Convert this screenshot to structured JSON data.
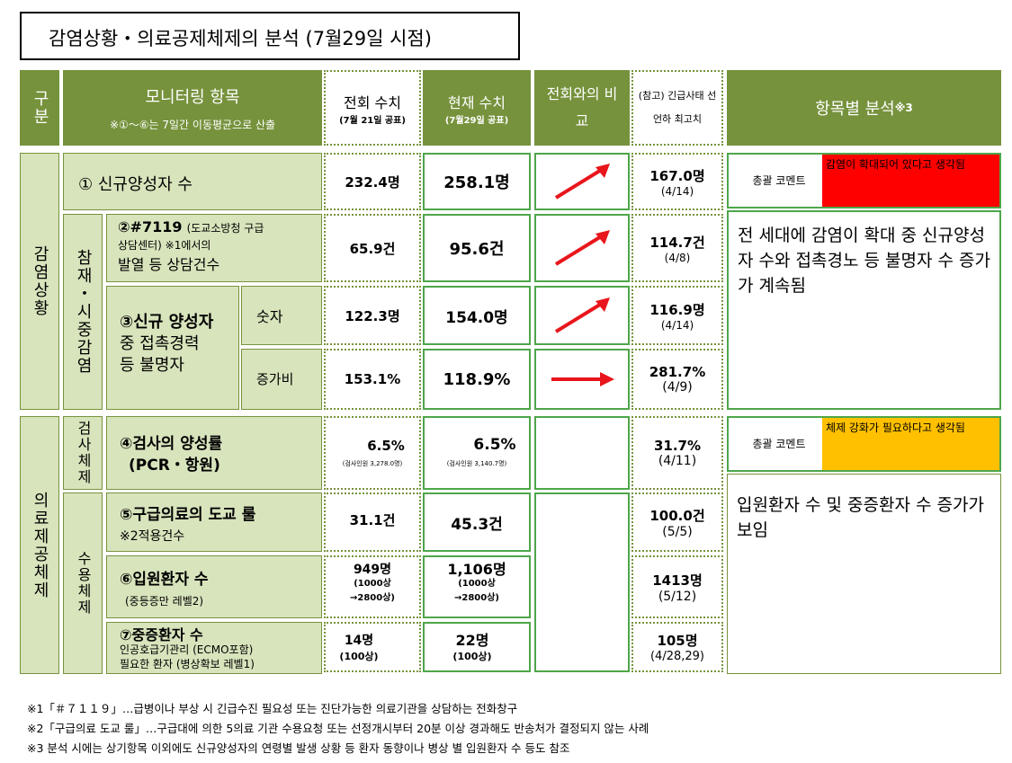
{
  "title": "감염상황・의료공제체제의 분석 (7월29일 시점)",
  "header": {
    "category": "구분",
    "items": "모니터링 항목",
    "items_note": "※①～⑥는 7일간 이동평균으로 산출",
    "prev": "전회 수치",
    "prev_note": "(7월 21일 공표)",
    "current": "현재 수치",
    "current_note": "(7월29일 공표)",
    "compare": "전회와의 비교",
    "ref": "(참고) 긴급사태 선언하 최고치",
    "analysis": "항목별 분석",
    "analysis_note": "※3"
  },
  "sections": {
    "infection": "감염상황",
    "resurgence": "참재・시중감염",
    "testing": "검사체제",
    "medical": "의료제공체제",
    "capacity": "수용체제"
  },
  "rows": [
    {
      "label": "① 신규양성자 수",
      "prev": "232.4명",
      "cur": "258.1명",
      "ref": "167.0명",
      "ref_date": "(4/14)"
    },
    {
      "label": "②#7119 (도교소방청 구급상담센터) ※1에서의 발열 등 상담건수",
      "label_a": "②#7119",
      "label_b": "(도교소방청 구급",
      "label_c": "상담센터) ※1에서의",
      "label_d": "발열 등 상담건수",
      "prev": "65.9건",
      "cur": "95.6건",
      "ref": "114.7건",
      "ref_date": "(4/8)"
    },
    {
      "label_a": "③신규 양성자",
      "label_b": "중 접촉경력",
      "label_c": "등 불명자",
      "sub1": "숫자",
      "sub2": "증가비",
      "prev": "122.3명",
      "cur": "154.0명",
      "ref": "116.9명",
      "ref_date": "(4/14)",
      "prev2": "153.1%",
      "cur2": "118.9%",
      "ref2": "281.7%",
      "ref2_date": "(4/9)"
    },
    {
      "label_a": "④검사의 양성률",
      "label_b": "(PCR・항원)",
      "prev": "6.5%",
      "prev_note": "(검사인원 3,278.0명)",
      "cur": "6.5%",
      "cur_note": "(검사인원 3,140.7명)",
      "ref": "31.7%",
      "ref_date": "(4/11)"
    },
    {
      "label_a": "⑤구급의료의 도교 룰",
      "label_b": "※2적용건수",
      "prev": "31.1건",
      "cur": "45.3건",
      "ref": "100.0건",
      "ref_date": "(5/5)"
    },
    {
      "label_a": "⑥입원환자 수",
      "label_b": "(중등증만 레벨2)",
      "prev": "949명",
      "prev_note1": "(1000상",
      "prev_note2": "→2800상)",
      "cur": "1,106명",
      "cur_note1": "(1000상",
      "cur_note2": "→2800상)",
      "ref": "1413명",
      "ref_date": "(5/12)"
    },
    {
      "label_a": "⑦중증환자 수",
      "label_b": "인공호급기관리 (ECMO포함)",
      "label_c": "필요한 환자 (병상확보 레벨1)",
      "prev": "14명",
      "prev_note": "(100상)",
      "cur": "22명",
      "cur_note": "(100상)",
      "ref": "105명",
      "ref_date": "(4/28,29)"
    }
  ],
  "analysis": {
    "comment_label": "총괄 코멘트",
    "infection_comment": "감염이 확대되어 있다고 생각됨",
    "infection_color": "#ff0000",
    "infection_text": "전 세대에 감염이 확대 중 신규양성자 수와 접촉경노 등 불명자 수 증가가 계속됨",
    "medical_comment": "체제 강화가 필요하다고 생각됨",
    "medical_color": "#ffc000",
    "medical_text": "입원환자 수 및 중증환자 수 증가가 보임"
  },
  "footnotes": [
    "※1「＃７１１９」…급병이나 부상 시 긴급수진 필요성 또는 진단가능한 의료기관을 상담하는 전화창구",
    "※2「구급의료 도교 룰」…구급대에 의한 5의료 기관 수용요청 또는 선정개시부터 20분 이상 경과해도 반송처가 결정되지 않는 사례",
    "※3 분석 시에는 상기항목 이외에도 신규양성자의 연령별 발생 상황 등 환자 동향이나 병상 별 입원환자 수 등도 참조"
  ],
  "arrow_color": "#e8161c"
}
